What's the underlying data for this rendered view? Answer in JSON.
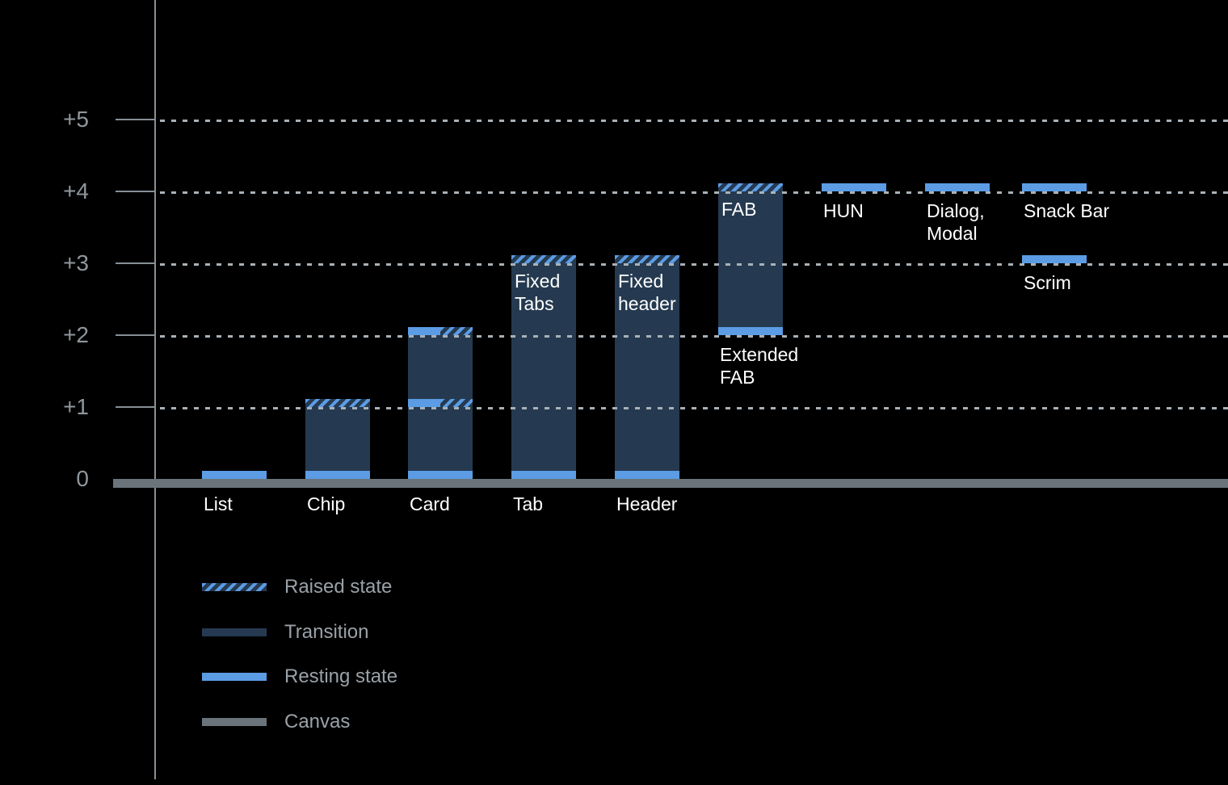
{
  "chart_data": {
    "type": "bar",
    "title": "",
    "subtitle": "",
    "xlabel": "",
    "ylabel": "",
    "ylim": [
      0,
      5.6
    ],
    "grid": "dotted horizontal",
    "legend_position": "bottom-left",
    "colors": {
      "background": "#000000",
      "resting": "#5B9CE4",
      "transition": "#253A50",
      "canvas": "#6B737B",
      "axis": "#878F96",
      "gridline": "#A9B1B7",
      "tick_label": "#8F969C",
      "legend_text": "#9AA1A7",
      "bar_label": "#FFFFFF"
    },
    "y_axis": {
      "ticks": [
        {
          "label": "+5",
          "value": 5
        },
        {
          "label": "+4",
          "value": 4
        },
        {
          "label": "+3",
          "value": 3
        },
        {
          "label": "+2",
          "value": 2
        },
        {
          "label": "+1",
          "value": 1
        },
        {
          "label": "0",
          "value": 0
        }
      ]
    },
    "bars": [
      {
        "name": "list",
        "slot": 0,
        "category": "List",
        "transition": null,
        "bands": [
          {
            "level": 0,
            "kind": "resting"
          }
        ],
        "inner_label": null,
        "below_label": null
      },
      {
        "name": "chip",
        "slot": 1,
        "category": "Chip",
        "transition": [
          0,
          1
        ],
        "bands": [
          {
            "level": 0,
            "kind": "resting"
          },
          {
            "level": 1,
            "kind": "raised"
          }
        ],
        "inner_label": null,
        "below_label": null
      },
      {
        "name": "card",
        "slot": 2,
        "category": "Card",
        "transition": [
          0,
          2
        ],
        "bands": [
          {
            "level": 0,
            "kind": "resting"
          },
          {
            "level": 1,
            "kind": "split"
          },
          {
            "level": 2,
            "kind": "split"
          }
        ],
        "inner_label": null,
        "below_label": null
      },
      {
        "name": "tab",
        "slot": 3,
        "category": "Tab",
        "transition": [
          0,
          3
        ],
        "bands": [
          {
            "level": 0,
            "kind": "resting"
          },
          {
            "level": 3,
            "kind": "raised"
          }
        ],
        "inner_label": "Fixed\nTabs",
        "below_label": null
      },
      {
        "name": "header",
        "slot": 4,
        "category": "Header",
        "transition": [
          0,
          3
        ],
        "bands": [
          {
            "level": 0,
            "kind": "resting"
          },
          {
            "level": 3,
            "kind": "raised"
          }
        ],
        "inner_label": "Fixed\nheader",
        "below_label": null
      },
      {
        "name": "fab",
        "slot": 5,
        "category": null,
        "transition": [
          2,
          4
        ],
        "bands": [
          {
            "level": 2,
            "kind": "resting"
          },
          {
            "level": 4,
            "kind": "raised"
          }
        ],
        "inner_label": "FAB",
        "below_label": "Extended\nFAB"
      },
      {
        "name": "hun",
        "slot": 6,
        "category": null,
        "transition": null,
        "bands": [
          {
            "level": 4,
            "kind": "resting"
          }
        ],
        "inner_label": null,
        "below_label": "HUN"
      },
      {
        "name": "dialog-modal",
        "slot": 7,
        "category": null,
        "transition": null,
        "bands": [
          {
            "level": 4,
            "kind": "resting"
          }
        ],
        "inner_label": null,
        "below_label": "Dialog,\nModal"
      },
      {
        "name": "snack-bar",
        "slot": 8,
        "category": null,
        "transition": null,
        "bands": [
          {
            "level": 4,
            "kind": "resting"
          }
        ],
        "inner_label": null,
        "below_label": "Snack Bar"
      },
      {
        "name": "scrim",
        "slot": 8,
        "category": null,
        "transition": null,
        "bands": [
          {
            "level": 3,
            "kind": "resting"
          }
        ],
        "inner_label": null,
        "below_label": "Scrim"
      }
    ],
    "legend": [
      {
        "name": "raised-state",
        "label": "Raised state",
        "style": "raised"
      },
      {
        "name": "transition",
        "label": "Transition",
        "style": "transition"
      },
      {
        "name": "resting-state",
        "label": "Resting state",
        "style": "resting"
      },
      {
        "name": "canvas",
        "label": "Canvas",
        "style": "canvas"
      }
    ]
  }
}
